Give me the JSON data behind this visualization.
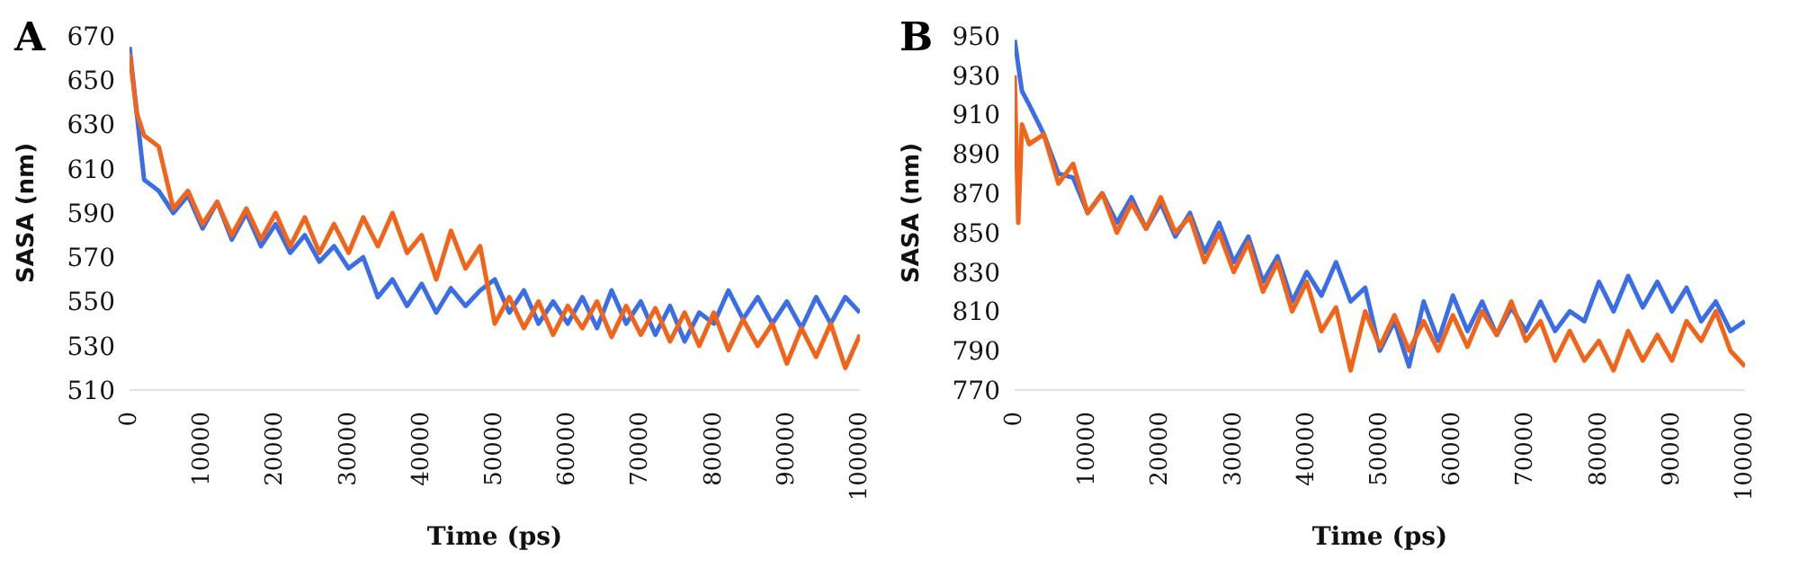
{
  "chart_data": [
    {
      "type": "line",
      "title": "A",
      "xlabel": "Time (ps)",
      "ylabel": "SASA (nm)",
      "xlim": [
        0,
        100000
      ],
      "xticks": [
        0,
        10000,
        20000,
        30000,
        40000,
        50000,
        60000,
        70000,
        80000,
        90000,
        100000
      ],
      "ylim": [
        510,
        670
      ],
      "yticks": [
        510,
        530,
        550,
        570,
        590,
        610,
        630,
        650,
        670
      ],
      "grid": false,
      "series": [
        {
          "color": "#3a6ee8",
          "x": [
            0,
            2000,
            4000,
            6000,
            8000,
            10000,
            12000,
            14000,
            16000,
            18000,
            20000,
            22000,
            24000,
            26000,
            28000,
            30000,
            32000,
            34000,
            36000,
            38000,
            40000,
            42000,
            44000,
            46000,
            48000,
            50000,
            52000,
            54000,
            56000,
            58000,
            60000,
            62000,
            64000,
            66000,
            68000,
            70000,
            72000,
            74000,
            76000,
            78000,
            80000,
            82000,
            84000,
            86000,
            88000,
            90000,
            92000,
            94000,
            96000,
            98000,
            100000
          ],
          "values": [
            665,
            605,
            600,
            590,
            598,
            583,
            595,
            578,
            590,
            575,
            585,
            572,
            580,
            568,
            575,
            565,
            570,
            552,
            560,
            548,
            558,
            545,
            556,
            548,
            555,
            560,
            545,
            555,
            540,
            550,
            540,
            552,
            538,
            555,
            540,
            550,
            535,
            548,
            532,
            545,
            540,
            555,
            542,
            552,
            540,
            550,
            538,
            552,
            540,
            552,
            545
          ]
        },
        {
          "color": "#f26419",
          "x": [
            0,
            1000,
            2000,
            4000,
            6000,
            8000,
            10000,
            12000,
            14000,
            16000,
            18000,
            20000,
            22000,
            24000,
            26000,
            28000,
            30000,
            32000,
            34000,
            36000,
            38000,
            40000,
            42000,
            44000,
            46000,
            48000,
            50000,
            52000,
            54000,
            56000,
            58000,
            60000,
            62000,
            64000,
            66000,
            68000,
            70000,
            72000,
            74000,
            76000,
            78000,
            80000,
            82000,
            84000,
            86000,
            88000,
            90000,
            92000,
            94000,
            96000,
            98000,
            100000
          ],
          "values": [
            662,
            635,
            625,
            620,
            592,
            600,
            585,
            595,
            580,
            592,
            578,
            590,
            575,
            588,
            572,
            585,
            572,
            588,
            575,
            590,
            572,
            580,
            560,
            582,
            565,
            575,
            540,
            552,
            538,
            550,
            535,
            548,
            538,
            550,
            534,
            548,
            535,
            547,
            532,
            545,
            530,
            545,
            528,
            542,
            530,
            540,
            522,
            538,
            525,
            540,
            520,
            535
          ]
        }
      ]
    },
    {
      "type": "line",
      "title": "B",
      "xlabel": "Time (ps)",
      "ylabel": "SASA (nm)",
      "xlim": [
        0,
        100000
      ],
      "xticks": [
        0,
        10000,
        20000,
        30000,
        40000,
        50000,
        60000,
        70000,
        80000,
        90000,
        100000
      ],
      "ylim": [
        770,
        950
      ],
      "yticks": [
        770,
        790,
        810,
        830,
        850,
        870,
        890,
        910,
        930,
        950
      ],
      "grid": false,
      "series": [
        {
          "color": "#3a6ee8",
          "x": [
            0,
            1000,
            2000,
            4000,
            6000,
            8000,
            10000,
            12000,
            14000,
            16000,
            18000,
            20000,
            22000,
            24000,
            26000,
            28000,
            30000,
            32000,
            34000,
            36000,
            38000,
            40000,
            42000,
            44000,
            46000,
            48000,
            50000,
            52000,
            54000,
            56000,
            58000,
            60000,
            62000,
            64000,
            66000,
            68000,
            70000,
            72000,
            74000,
            76000,
            78000,
            80000,
            82000,
            84000,
            86000,
            88000,
            90000,
            92000,
            94000,
            96000,
            98000,
            100000
          ],
          "values": [
            948,
            922,
            915,
            900,
            880,
            878,
            860,
            870,
            855,
            868,
            852,
            865,
            848,
            860,
            840,
            855,
            835,
            848,
            825,
            838,
            815,
            830,
            818,
            835,
            815,
            822,
            790,
            805,
            782,
            815,
            795,
            818,
            800,
            815,
            798,
            812,
            800,
            815,
            800,
            810,
            805,
            825,
            810,
            828,
            812,
            825,
            810,
            822,
            805,
            815,
            800,
            805
          ]
        },
        {
          "color": "#f26419",
          "x": [
            0,
            500,
            1000,
            2000,
            4000,
            6000,
            8000,
            10000,
            12000,
            14000,
            16000,
            18000,
            20000,
            22000,
            24000,
            26000,
            28000,
            30000,
            32000,
            34000,
            36000,
            38000,
            40000,
            42000,
            44000,
            46000,
            48000,
            50000,
            52000,
            54000,
            56000,
            58000,
            60000,
            62000,
            64000,
            66000,
            68000,
            70000,
            72000,
            74000,
            76000,
            78000,
            80000,
            82000,
            84000,
            86000,
            88000,
            90000,
            92000,
            94000,
            96000,
            98000,
            100000
          ],
          "values": [
            930,
            855,
            905,
            895,
            900,
            875,
            885,
            860,
            870,
            850,
            865,
            852,
            868,
            850,
            858,
            835,
            850,
            830,
            845,
            820,
            835,
            810,
            825,
            800,
            812,
            780,
            810,
            792,
            808,
            790,
            805,
            790,
            808,
            792,
            810,
            798,
            815,
            795,
            805,
            785,
            800,
            785,
            795,
            780,
            800,
            785,
            798,
            785,
            805,
            795,
            810,
            790,
            782
          ]
        }
      ]
    }
  ]
}
